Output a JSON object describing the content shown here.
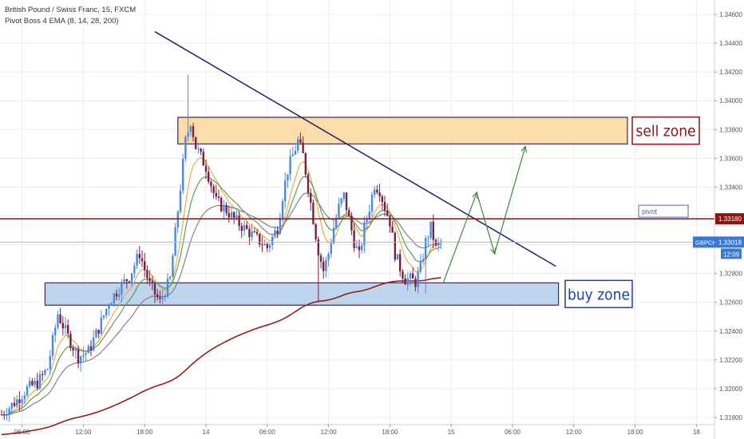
{
  "header": {
    "symbol_line": "British Pound / Swiss Franc, 15, FXCM",
    "indicator_line": "Pivot Boss 4 EMA (8, 14, 28, 200)"
  },
  "chart_data": {
    "type": "candlestick",
    "symbol": "GBPCHF",
    "timeframe": "15",
    "ylim": [
      1.3175,
      1.347
    ],
    "y_ticks": [
      1.346,
      1.344,
      1.342,
      1.34,
      1.338,
      1.336,
      1.334,
      1.332,
      1.33,
      1.328,
      1.326,
      1.324,
      1.322,
      1.32,
      1.318
    ],
    "x_ticks": [
      {
        "label": "06:00",
        "i": 8
      },
      {
        "label": "12:00",
        "i": 32
      },
      {
        "label": "18:00",
        "i": 56
      },
      {
        "label": "14",
        "i": 80
      },
      {
        "label": "06:00",
        "i": 104
      },
      {
        "label": "12:00",
        "i": 128
      },
      {
        "label": "18:00",
        "i": 152
      },
      {
        "label": "15",
        "i": 176
      },
      {
        "label": "06:00",
        "i": 200
      },
      {
        "label": "12:00",
        "i": 224
      },
      {
        "label": "18:00",
        "i": 248
      },
      {
        "label": "18",
        "i": 272
      }
    ],
    "price_path": [
      [
        0,
        1.3182
      ],
      [
        6,
        1.3192
      ],
      [
        10,
        1.32
      ],
      [
        14,
        1.3204
      ],
      [
        18,
        1.3214
      ],
      [
        22,
        1.3252
      ],
      [
        26,
        1.3236
      ],
      [
        30,
        1.3222
      ],
      [
        34,
        1.3226
      ],
      [
        38,
        1.3242
      ],
      [
        42,
        1.326
      ],
      [
        46,
        1.327
      ],
      [
        50,
        1.3278
      ],
      [
        54,
        1.3294
      ],
      [
        58,
        1.3272
      ],
      [
        62,
        1.326
      ],
      [
        66,
        1.3276
      ],
      [
        68,
        1.3308
      ],
      [
        70,
        1.334
      ],
      [
        72,
        1.3372
      ],
      [
        74,
        1.3386
      ],
      [
        76,
        1.3368
      ],
      [
        80,
        1.3354
      ],
      [
        84,
        1.333
      ],
      [
        88,
        1.3324
      ],
      [
        92,
        1.3316
      ],
      [
        96,
        1.331
      ],
      [
        100,
        1.3304
      ],
      [
        104,
        1.3298
      ],
      [
        108,
        1.3312
      ],
      [
        110,
        1.3334
      ],
      [
        112,
        1.3352
      ],
      [
        116,
        1.3372
      ],
      [
        118,
        1.3362
      ],
      [
        120,
        1.334
      ],
      [
        122,
        1.3318
      ],
      [
        124,
        1.3296
      ],
      [
        126,
        1.3282
      ],
      [
        128,
        1.3294
      ],
      [
        130,
        1.3312
      ],
      [
        132,
        1.3326
      ],
      [
        134,
        1.3334
      ],
      [
        136,
        1.3318
      ],
      [
        138,
        1.3302
      ],
      [
        140,
        1.3292
      ],
      [
        142,
        1.3312
      ],
      [
        144,
        1.3326
      ],
      [
        146,
        1.3342
      ],
      [
        148,
        1.3338
      ],
      [
        150,
        1.3326
      ],
      [
        152,
        1.3316
      ],
      [
        154,
        1.3294
      ],
      [
        156,
        1.3284
      ],
      [
        158,
        1.3276
      ],
      [
        160,
        1.3276
      ],
      [
        162,
        1.3274
      ],
      [
        164,
        1.3284
      ],
      [
        166,
        1.3302
      ],
      [
        168,
        1.3312
      ],
      [
        170,
        1.3298
      ],
      [
        172,
        1.3302
      ]
    ],
    "ema": [
      {
        "name": "8",
        "color": "#f2a33a",
        "span": 8
      },
      {
        "name": "14",
        "color": "#4a9a4a",
        "span": 14
      },
      {
        "name": "28",
        "color": "#7a7a7a",
        "span": 28
      },
      {
        "name": "200",
        "color": "#9b1c1c",
        "span": 200
      }
    ],
    "trendline": {
      "from": [
        60,
        1.3448
      ],
      "to": [
        217,
        1.3285
      ]
    },
    "pivot": {
      "price": 1.3318,
      "label": "pivot",
      "price_label": "1.33180"
    },
    "last": {
      "symbol": "GBPCHF",
      "price": 1.33018,
      "price_label": "1.33018",
      "countdown": "12:09"
    },
    "sell_zone": {
      "label": "sell zone",
      "top": 1.33885,
      "bottom": 1.337,
      "from_i": 69,
      "to_i": 245,
      "fill": "#fbd79b",
      "text_color": "#8b1414"
    },
    "buy_zone": {
      "label": "buy zone",
      "top": 1.32735,
      "bottom": 1.3258,
      "from_i": 17,
      "to_i": 218,
      "fill": "#b3cfea",
      "text_color": "#1a3fb4"
    },
    "projection": [
      [
        173,
        1.3274
      ],
      [
        186,
        1.3336
      ],
      [
        193,
        1.3294
      ],
      [
        205,
        1.3368
      ]
    ],
    "colors": {
      "up": "#4a88e6",
      "down": "#7a1f3c",
      "trendline": "#262068",
      "pivot_line": "#8b1414",
      "projection": "#3d8a3d",
      "grid": "#ececec"
    }
  }
}
